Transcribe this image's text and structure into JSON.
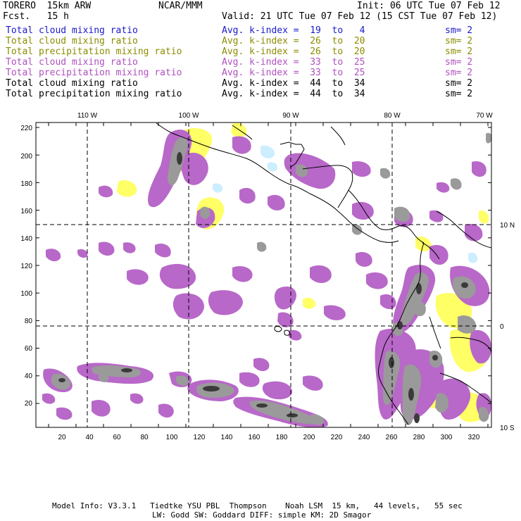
{
  "header": {
    "model": "TORERO  15km ARW",
    "org": "NCAR/MMM",
    "init": "Init: 06 UTC Tue 07 Feb 12",
    "fcst": "Fcst.   15 h",
    "valid": "Valid: 21 UTC Tue 07 Feb 12 (15 CST Tue 07 Feb 12)"
  },
  "legend": [
    {
      "field": "Total cloud mixing ratio",
      "kindex": "Avg. k-index =  19  to   4",
      "sm": "sm= 2",
      "color": "#1a1acc"
    },
    {
      "field": "Total cloud mixing ratio",
      "kindex": "Avg. k-index =  26  to  20",
      "sm": "sm= 2",
      "color": "#8c8c00"
    },
    {
      "field": "Total precipitation mixing ratio",
      "kindex": "Avg. k-index =  26  to  20",
      "sm": "sm= 2",
      "color": "#8c8c00"
    },
    {
      "field": "Total cloud mixing ratio",
      "kindex": "Avg. k-index =  33  to  25",
      "sm": "sm= 2",
      "color": "#b050c0"
    },
    {
      "field": "Total precipitation mixing ratio",
      "kindex": "Avg. k-index =  33  to  25",
      "sm": "sm= 2",
      "color": "#b050c0"
    },
    {
      "field": "Total cloud mixing ratio",
      "kindex": "Avg. k-index =  44  to  34",
      "sm": "sm= 2",
      "color": "#000000"
    },
    {
      "field": "Total precipitation mixing ratio",
      "kindex": "Avg. k-index =  44  to  34",
      "sm": "sm= 2",
      "color": "#000000"
    }
  ],
  "map": {
    "top_lon_labels": [
      "110 W",
      "100 W",
      "90 W",
      "80 W",
      "70 W"
    ],
    "right_lat_labels": [
      "10 N",
      "0",
      "10 S"
    ],
    "y_ticks": [
      "220",
      "200",
      "180",
      "160",
      "140",
      "120",
      "100",
      "80",
      "60",
      "40",
      "20"
    ],
    "x_ticks": [
      "20",
      "40",
      "60",
      "80",
      "100",
      "120",
      "140",
      "160",
      "180",
      "200",
      "220",
      "240",
      "260",
      "280",
      "300",
      "320"
    ],
    "colors": {
      "gray": "#9a9a9a",
      "dark": "#3a3a3a",
      "purple": "#b868c8",
      "yellow": "#ffff66",
      "lightblue": "#cceeff"
    }
  },
  "footer": {
    "line1": "Model Info: V3.3.1   Tiedtke YSU PBL  Thompson    Noah LSM  15 km,   44 levels,   55 sec",
    "line2": "LW: Godd SW: Goddard DIFF: simple KM: 2D Smagor"
  }
}
